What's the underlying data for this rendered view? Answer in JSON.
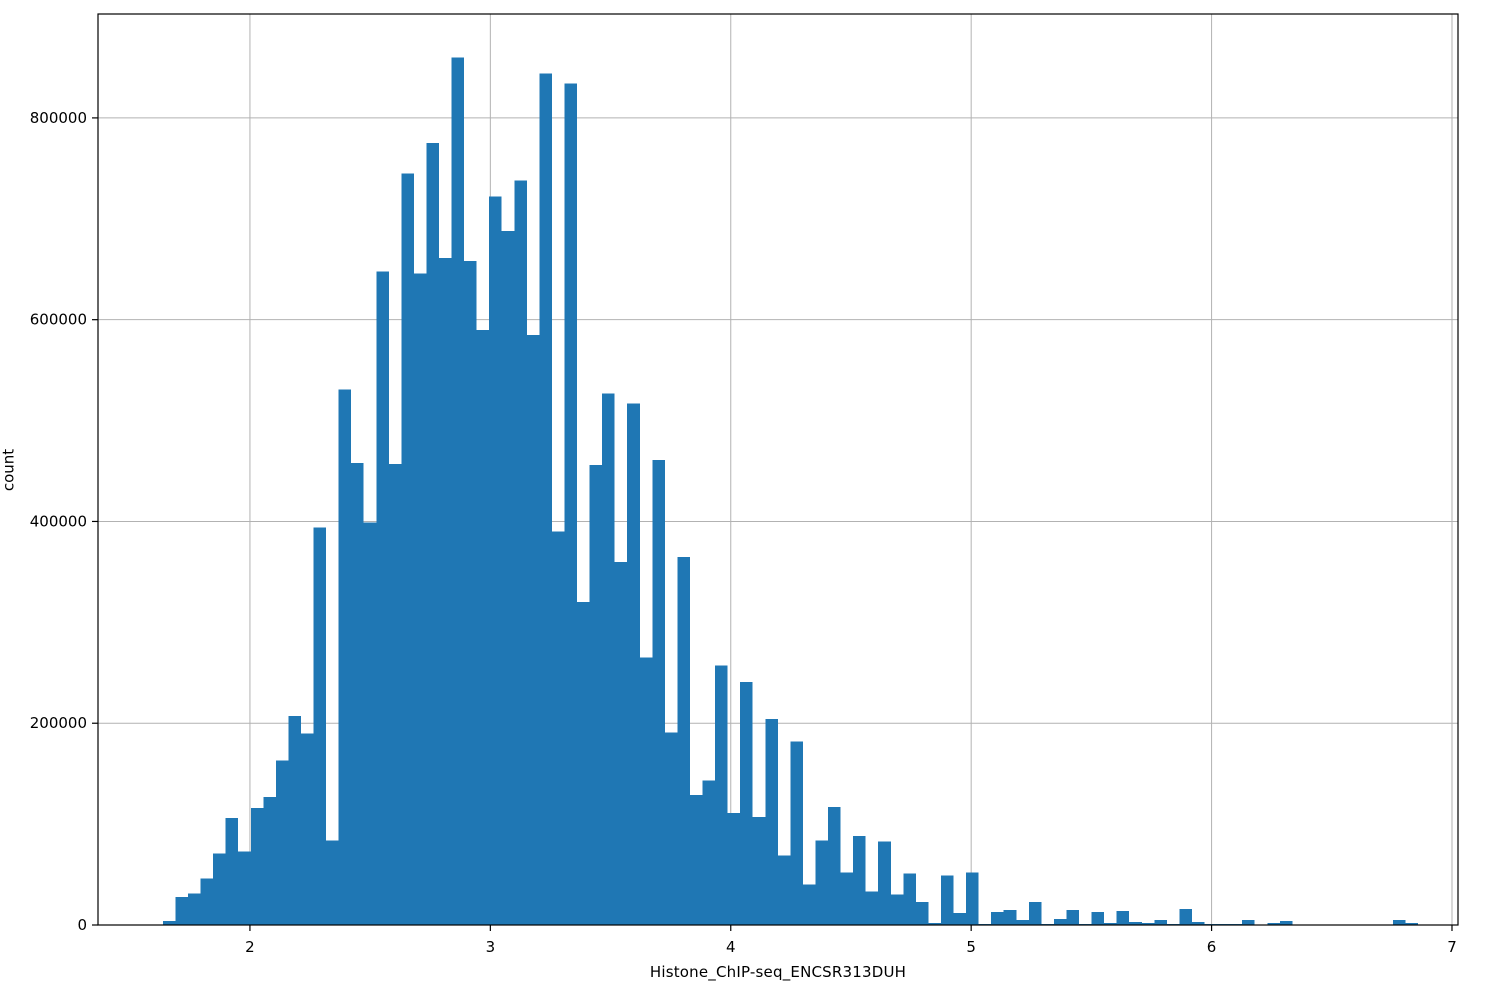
{
  "figure": {
    "xlabel": "Histone_ChIP-seq_ENCSR313DUH",
    "ylabel": "count",
    "colors": {
      "bar": "#1f77b4",
      "grid": "#b2b2b2",
      "axis": "#000000",
      "text": "#000000",
      "background": "#ffffff"
    }
  },
  "chart_data": {
    "type": "bar",
    "subtype": "histogram",
    "title": "",
    "xlabel": "Histone_ChIP-seq_ENCSR313DUH",
    "ylabel": "count",
    "xlim": [
      1.368,
      7.025
    ],
    "ylim": [
      0,
      903000
    ],
    "x_ticks": [
      2,
      3,
      4,
      5,
      6,
      7
    ],
    "x_tick_labels": [
      "2",
      "3",
      "4",
      "5",
      "6",
      "7"
    ],
    "y_ticks": [
      0,
      200000,
      400000,
      600000,
      800000
    ],
    "y_tick_labels": [
      "0",
      "200000",
      "400000",
      "600000",
      "800000"
    ],
    "grid": true,
    "legend_position": "none",
    "bar_color": "#1f77b4",
    "bin_start": 1.638,
    "bin_width": 0.0522,
    "counts": [
      4000,
      28000,
      31000,
      46000,
      71000,
      106000,
      73000,
      116000,
      127000,
      163000,
      207000,
      190000,
      394000,
      84000,
      531000,
      458000,
      399000,
      648000,
      457000,
      745000,
      646000,
      775000,
      661000,
      860000,
      658000,
      590000,
      722000,
      688000,
      738000,
      585000,
      844000,
      390000,
      834000,
      320000,
      456000,
      527000,
      360000,
      517000,
      265000,
      461000,
      191000,
      365000,
      129000,
      143000,
      257000,
      111000,
      241000,
      107000,
      204000,
      69000,
      182000,
      40000,
      84000,
      117000,
      52000,
      88000,
      33000,
      83000,
      30000,
      51000,
      23000,
      2000,
      49000,
      12000,
      52000,
      1000,
      13000,
      15000,
      5000,
      23000,
      1000,
      6000,
      15000,
      1000,
      13000,
      2000,
      14000,
      3000,
      2000,
      5000,
      1000,
      16000,
      3000,
      1000,
      1000,
      1000,
      5000,
      0,
      2000,
      4000,
      0,
      0,
      0,
      0,
      0,
      0,
      0,
      0,
      5000,
      2000,
      0,
      0,
      0
    ]
  }
}
